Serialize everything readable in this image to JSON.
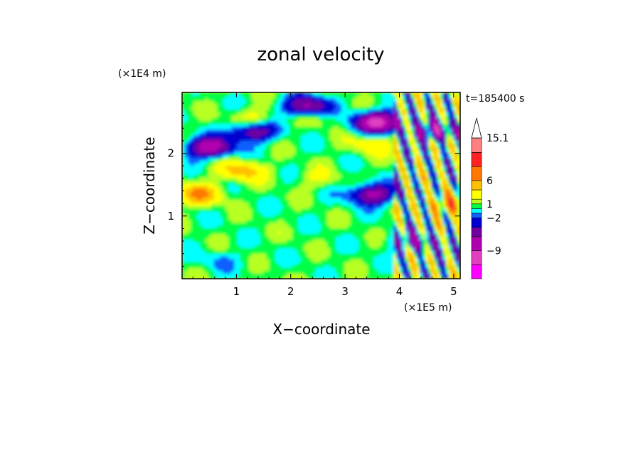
{
  "chart_data": {
    "type": "heatmap",
    "title": "zonal velocity",
    "xlabel": "X−coordinate",
    "ylabel": "Z−coordinate",
    "x_scale_label": "(×1E5 m)",
    "y_scale_label": "(×1E4 m)",
    "time_label": "t=185400 s",
    "xlim": [
      0,
      5.12
    ],
    "ylim": [
      0,
      2.97
    ],
    "x_ticks": [
      1,
      2,
      3,
      4,
      5
    ],
    "y_ticks": [
      1,
      2
    ],
    "colorbar": {
      "tick_labels": [
        "15.1",
        "6",
        "1",
        "−2",
        "−9"
      ],
      "tick_values": [
        15.1,
        6,
        1,
        -2,
        -9
      ],
      "levels": [
        -15,
        -12,
        -9,
        -6,
        -4,
        -2,
        -1,
        0,
        1,
        2,
        4,
        6,
        9,
        12,
        15.1
      ],
      "colors": [
        "#ff00ff",
        "#e040c0",
        "#b000b0",
        "#7000a0",
        "#0000d0",
        "#1060ff",
        "#00ffff",
        "#00ff44",
        "#b8ff20",
        "#ffff00",
        "#ffc000",
        "#ff7700",
        "#ff2222",
        "#ff8080",
        "#ffc0c0"
      ],
      "extend_top": true
    },
    "features": [
      {
        "x": 1.3,
        "z": 2.55,
        "value": 3
      },
      {
        "x": 2.5,
        "z": 2.6,
        "value": 2
      },
      {
        "x": 0.5,
        "z": 2.1,
        "value": -8
      },
      {
        "x": 1.3,
        "z": 2.35,
        "value": -6
      },
      {
        "x": 2.3,
        "z": 2.75,
        "value": -7
      },
      {
        "x": 3.6,
        "z": 2.5,
        "value": -10
      },
      {
        "x": 3.5,
        "z": 2.15,
        "value": 3
      },
      {
        "x": 1.1,
        "z": 1.73,
        "value": 5
      },
      {
        "x": 0.3,
        "z": 1.35,
        "value": 6
      },
      {
        "x": 2.5,
        "z": 1.6,
        "value": 2
      },
      {
        "x": 3.5,
        "z": 1.35,
        "value": -7
      },
      {
        "x": 2.0,
        "z": 0.7,
        "value": 0.7
      },
      {
        "x": 0.7,
        "z": 0.3,
        "value": -1
      },
      {
        "x": 4.3,
        "z": 0.6,
        "value": -4
      },
      {
        "x": 4.9,
        "z": 1.2,
        "value": 6
      },
      {
        "x": 4.65,
        "z": 2.35,
        "value": -6
      }
    ]
  }
}
